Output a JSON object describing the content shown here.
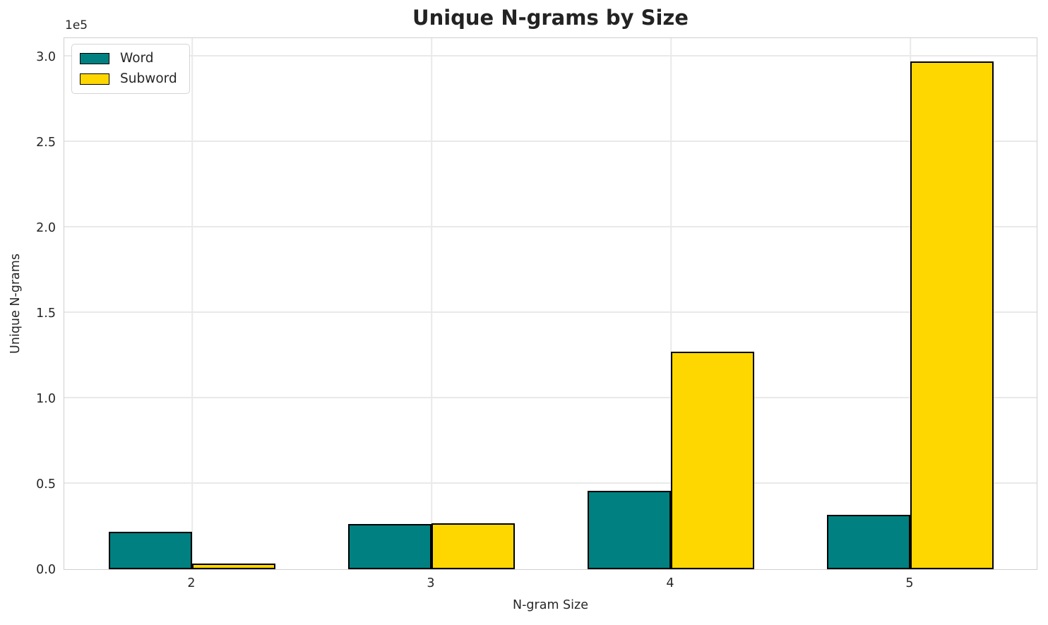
{
  "figure": {
    "title": "Unique N-grams by Size",
    "xlabel": "N-gram Size",
    "ylabel": "Unique N-grams",
    "offset_label": "1e5",
    "background": "#ffffff",
    "text_color": "#262626"
  },
  "legend": {
    "position": "upper-left",
    "entries": [
      {
        "label": "Word",
        "color": "#008080",
        "edge_color": "#000000"
      },
      {
        "label": "Subword",
        "color": "#FFD700",
        "edge_color": "#000000"
      }
    ]
  },
  "chart_data": {
    "type": "bar",
    "title": "Unique N-grams by Size",
    "xlabel": "N-gram Size",
    "ylabel": "Unique N-grams",
    "categories": [
      "2",
      "3",
      "4",
      "5"
    ],
    "series": [
      {
        "name": "Word",
        "color": "#008080",
        "values": [
          22000,
          26300,
          46000,
          31800
        ]
      },
      {
        "name": "Subword",
        "color": "#FFD700",
        "values": [
          3300,
          26700,
          127300,
          297000
        ]
      }
    ],
    "y_multiplier": 100000,
    "y_offset_label": "1e5",
    "yticks": [
      0.0,
      0.5,
      1.0,
      1.5,
      2.0,
      2.5,
      3.0
    ],
    "ytick_labels": [
      "0.0",
      "0.5",
      "1.0",
      "1.5",
      "2.0",
      "2.5",
      "3.0"
    ],
    "ylim": [
      0,
      311600
    ],
    "grid": true,
    "bar_edge_color": "#000000",
    "legend_position": "upper-left"
  }
}
